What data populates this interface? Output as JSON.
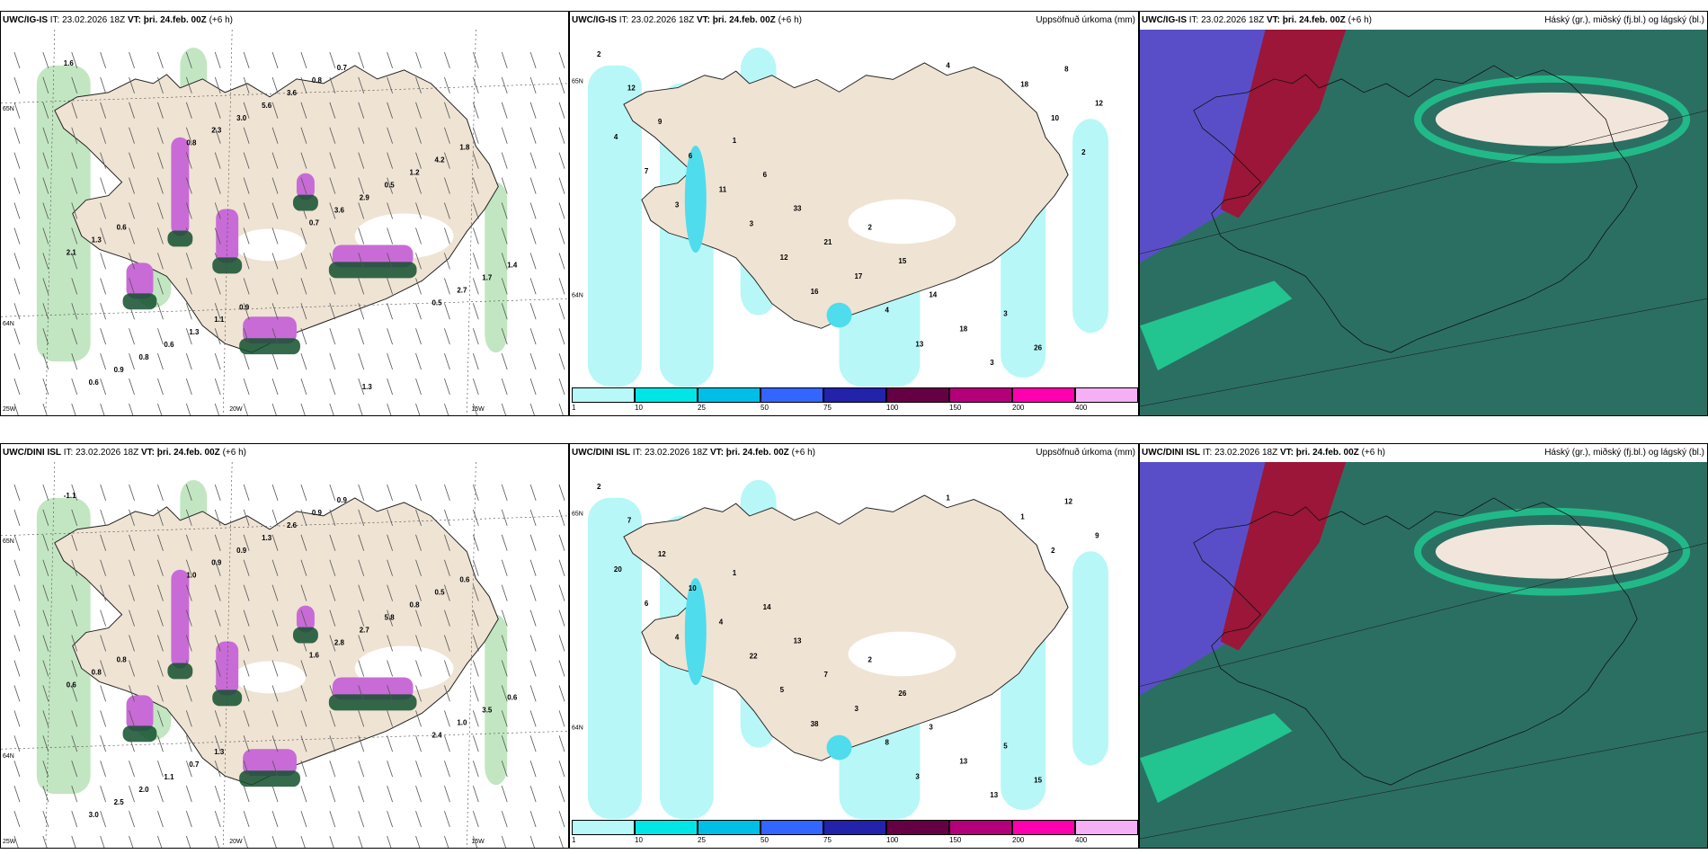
{
  "panels": [
    {
      "id": "p1",
      "model": "UWC/IG-IS",
      "init_label": "IT:",
      "init_time": "23.02.2026 18Z",
      "valid_label": "VT:",
      "valid_time": "þri. 24.feb. 00Z",
      "lead": "(+6 h)",
      "right_title": "",
      "lat_labels": [
        "65N",
        "64N"
      ],
      "lon_labels": [
        "25W",
        "20W",
        "15W"
      ],
      "values": [
        "1.6",
        "0.8",
        "0.7",
        "0.5",
        "0.6",
        "2.3",
        "3.6",
        "2.7",
        "0.9",
        "3.0",
        "2.9",
        "1.7",
        "0.8",
        "5.6",
        "0.5",
        "1.4",
        "0.6",
        "3.6",
        "1.2",
        "2.1",
        "1.3",
        "0.8",
        "4.2",
        "1.3",
        "1.1",
        "0.7",
        "1.8",
        "0.6",
        "0.9",
        "1.3"
      ]
    },
    {
      "id": "p2",
      "model": "UWC/IG-IS",
      "init_label": "IT:",
      "init_time": "23.02.2026 18Z",
      "valid_label": "VT:",
      "valid_time": "þri. 24.feb. 00Z",
      "lead": "(+6 h)",
      "right_title": "Uppsöfnuð úrkoma (mm)",
      "lat_labels": [
        "65N",
        "64N"
      ],
      "values": [
        "2",
        "1",
        "2",
        "3",
        "12",
        "6",
        "15",
        "26",
        "9",
        "33",
        "14",
        "8",
        "6",
        "21",
        "18",
        "12",
        "11",
        "17",
        "3",
        "4",
        "3",
        "4",
        "18",
        "7",
        "12",
        "13",
        "10",
        "3",
        "16",
        "4",
        "2"
      ],
      "colorbar": [
        "1",
        "10",
        "25",
        "50",
        "75",
        "100",
        "150",
        "200",
        "400"
      ]
    },
    {
      "id": "p3",
      "model": "UWC/IG-IS",
      "init_label": "IT:",
      "init_time": "23.02.2026 18Z",
      "valid_label": "VT:",
      "valid_time": "þri. 24.feb. 00Z",
      "lead": "(+6 h)",
      "right_title": "Háský (gr.), miðský (fj.bl.) og lágský (bl.)"
    },
    {
      "id": "p4",
      "model": "UWC/DINI ISL",
      "init_label": "IT:",
      "init_time": "23.02.2026 18Z",
      "valid_label": "VT:",
      "valid_time": "þri. 24.feb. 00Z",
      "lead": "(+6 h)",
      "right_title": "",
      "lat_labels": [
        "65N",
        "64N"
      ],
      "lon_labels": [
        "25W",
        "20W",
        "15W"
      ],
      "values": [
        "-1.1",
        "1.0",
        "1.6",
        "2.4",
        "3.0",
        "0.9",
        "2.8",
        "1.0",
        "2.5",
        "0.9",
        "2.7",
        "3.5",
        "2.0",
        "1.3",
        "5.8",
        "0.6",
        "1.1",
        "2.6",
        "0.8",
        "0.6",
        "0.7",
        "0.9",
        "0.5",
        "0.8",
        "1.3",
        "0.9",
        "0.6",
        "0.8"
      ]
    },
    {
      "id": "p5",
      "model": "UWC/DINI ISL",
      "init_label": "IT:",
      "init_time": "23.02.2026 18Z",
      "valid_label": "VT:",
      "valid_time": "þri. 24.feb. 00Z",
      "lead": "(+6 h)",
      "right_title": "Uppsöfnuð úrkoma (mm)",
      "lat_labels": [
        "65N",
        "64N"
      ],
      "values": [
        "2",
        "1",
        "2",
        "5",
        "7",
        "14",
        "26",
        "15",
        "12",
        "13",
        "3",
        "12",
        "10",
        "7",
        "13",
        "9",
        "4",
        "3",
        "13",
        "20",
        "22",
        "8",
        "1",
        "6",
        "5",
        "3",
        "2",
        "4",
        "38",
        "1"
      ],
      "colorbar": [
        "1",
        "10",
        "25",
        "50",
        "75",
        "100",
        "150",
        "200",
        "400"
      ]
    },
    {
      "id": "p6",
      "model": "UWC/DINI ISL",
      "init_label": "IT:",
      "init_time": "23.02.2026 18Z",
      "valid_label": "VT:",
      "valid_time": "þri. 24.feb. 00Z",
      "lead": "(+6 h)",
      "right_title": "Háský (gr.), miðský (fj.bl.) og lágský (bl.)"
    }
  ],
  "colors": {
    "land": "#efe3d4",
    "snow": "#ffffff",
    "precip_light": "#b7f7f7",
    "precip_mid": "#4fdcec",
    "green_light": "#a9dca8",
    "green_dark": "#12502e",
    "magenta": "#c86bd6",
    "sea_cloud": "#2b6f63",
    "high_cloud": "#5a4ec8",
    "mid_cloud": "#9b1638",
    "low_cloud": "#20d99a",
    "colorbar_colors": [
      "#b8f8f8",
      "#00e6e6",
      "#00bfe6",
      "#3366ff",
      "#2222aa",
      "#660044",
      "#b3007a",
      "#ff00b0",
      "#f5b0f5"
    ]
  }
}
